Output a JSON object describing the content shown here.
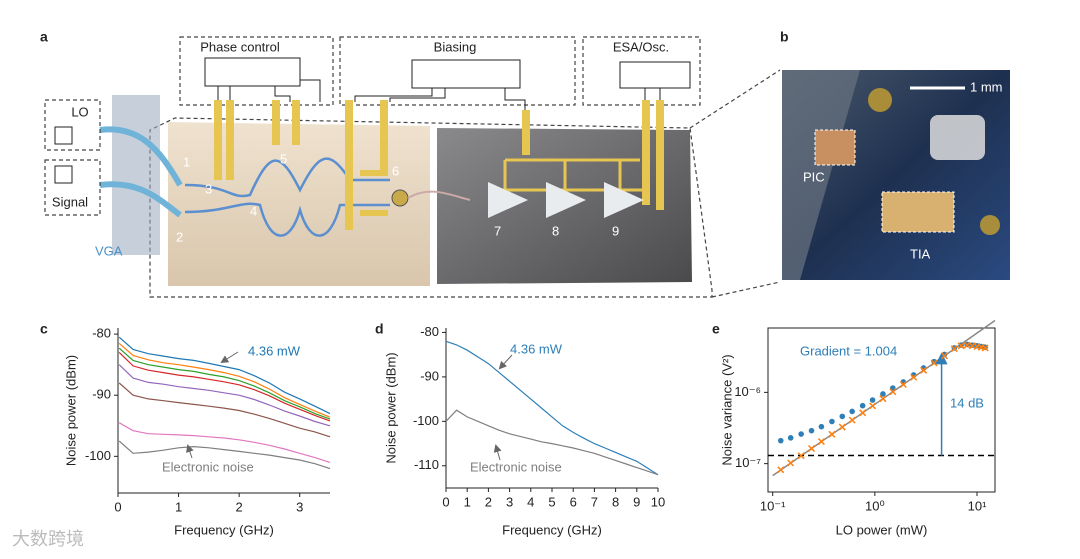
{
  "panel_a": {
    "label": "a",
    "phase": "Phase control",
    "biasing": "Biasing",
    "esa": "ESA/Osc.",
    "lo": "LO",
    "signal": "Signal",
    "vga": "VGA",
    "ports": [
      "1",
      "2",
      "3",
      "4",
      "5",
      "6",
      "7",
      "8",
      "9"
    ]
  },
  "panel_b": {
    "label": "b",
    "scale": "1 mm",
    "pic": "PIC",
    "tia": "TIA"
  },
  "watermark": "大数跨境",
  "chart_data": [
    {
      "type": "line",
      "panel_label": "c",
      "xlabel": "Frequency (GHz)",
      "ylabel": "Noise power (dBm)",
      "xlim": [
        0,
        3.5
      ],
      "ylim": [
        -106,
        -79
      ],
      "xticks": [
        0,
        1,
        2,
        3
      ],
      "yticks": [
        -100,
        -90,
        -80
      ],
      "x": [
        0.02,
        0.25,
        0.5,
        0.75,
        1,
        1.25,
        1.5,
        1.75,
        2,
        2.25,
        2.5,
        2.75,
        3,
        3.25,
        3.5
      ],
      "series": [
        {
          "color": "#1f77b4",
          "values": [
            -80.5,
            -82.5,
            -83.2,
            -83.6,
            -84,
            -84.3,
            -84.8,
            -85.3,
            -85.8,
            -86.8,
            -88,
            -89.5,
            -90.6,
            -91.8,
            -93
          ]
        },
        {
          "color": "#ff7f0e",
          "values": [
            -81.5,
            -83.5,
            -84.2,
            -84.7,
            -85,
            -85.4,
            -85.8,
            -86.3,
            -86.9,
            -87.8,
            -89,
            -90.4,
            -91.5,
            -92.6,
            -93.6
          ]
        },
        {
          "color": "#2ca02c",
          "values": [
            -82.3,
            -84.3,
            -85,
            -85.4,
            -85.8,
            -86.1,
            -86.6,
            -87,
            -87.6,
            -88.5,
            -89.6,
            -90.9,
            -91.9,
            -93,
            -93.9
          ]
        },
        {
          "color": "#d62728",
          "values": [
            -83,
            -85.2,
            -85.9,
            -86.3,
            -86.7,
            -87,
            -87.4,
            -87.8,
            -88.3,
            -89.1,
            -90.1,
            -91.3,
            -92.3,
            -93.3,
            -94.2
          ]
        },
        {
          "color": "#9467bd",
          "values": [
            -85,
            -87.2,
            -87.9,
            -88.2,
            -88.6,
            -88.9,
            -89.2,
            -89.6,
            -90,
            -90.7,
            -91.6,
            -92.6,
            -93.4,
            -94.3,
            -95
          ]
        },
        {
          "color": "#8c564b",
          "values": [
            -88,
            -90,
            -90.6,
            -90.9,
            -91.2,
            -91.5,
            -91.8,
            -92.1,
            -92.5,
            -93.1,
            -93.8,
            -94.6,
            -95.4,
            -96,
            -96.8
          ]
        },
        {
          "color": "#e377c2",
          "values": [
            -94.5,
            -95.8,
            -96.3,
            -96.4,
            -96.5,
            -96.6,
            -96.8,
            -97,
            -97.3,
            -97.7,
            -98.2,
            -98.8,
            -99.5,
            -100.2,
            -101
          ]
        },
        {
          "color": "#7f7f7f",
          "values": [
            -97.5,
            -99.5,
            -99.3,
            -99,
            -98.6,
            -98.4,
            -98.6,
            -98.9,
            -99.2,
            -99.5,
            -99.8,
            -100.2,
            -100.6,
            -101.2,
            -102
          ]
        }
      ],
      "annotations": [
        {
          "text": "4.36 mW",
          "color": "#1f77b4"
        },
        {
          "text": "Electronic noise",
          "color": "#7f7f7f"
        }
      ]
    },
    {
      "type": "line",
      "panel_label": "d",
      "xlabel": "Frequency (GHz)",
      "ylabel": "Noise power (dBm)",
      "xlim": [
        0,
        10
      ],
      "ylim": [
        -115,
        -79
      ],
      "xticks": [
        0,
        1,
        2,
        3,
        4,
        5,
        6,
        7,
        8,
        9,
        10
      ],
      "yticks": [
        -110,
        -100,
        -90,
        -80
      ],
      "x": [
        0,
        0.5,
        1,
        1.5,
        2,
        2.5,
        3,
        3.5,
        4,
        4.5,
        5,
        5.5,
        6,
        6.5,
        7,
        7.5,
        8,
        8.5,
        9,
        9.5,
        10
      ],
      "series": [
        {
          "color": "#2e7fb8",
          "values": [
            -82,
            -82.8,
            -84,
            -85.5,
            -87,
            -89,
            -91,
            -93,
            -95,
            -97,
            -99,
            -101,
            -102.5,
            -103.8,
            -105,
            -106,
            -107,
            -108,
            -109,
            -110.5,
            -112
          ]
        },
        {
          "color": "#7f7f7f",
          "values": [
            -100,
            -97.5,
            -99,
            -100,
            -101,
            -102,
            -102.8,
            -103.4,
            -104,
            -104.6,
            -105,
            -105.5,
            -106,
            -106.6,
            -107.2,
            -108,
            -108.8,
            -109.6,
            -110.4,
            -111.2,
            -112
          ]
        }
      ],
      "annotations": [
        {
          "text": "4.36 mW",
          "color": "#2e7fb8"
        },
        {
          "text": "Electronic noise",
          "color": "#7f7f7f"
        }
      ]
    },
    {
      "type": "scatter",
      "panel_label": "e",
      "xlabel": "LO power (mW)",
      "ylabel": "Noise variance (V²)",
      "xscale": "log",
      "yscale": "log",
      "xlim": [
        0.09,
        15
      ],
      "ylim": [
        4e-08,
        8e-06
      ],
      "xticks": [
        {
          "value": 0.1,
          "label": "10⁻¹"
        },
        {
          "value": 1,
          "label": "10⁰"
        },
        {
          "value": 10,
          "label": "10¹"
        }
      ],
      "yticks": [
        {
          "value": 1e-07,
          "label": "10⁻⁷"
        },
        {
          "value": 1e-06,
          "label": "10⁻⁶"
        }
      ],
      "x": [
        0.12,
        0.15,
        0.19,
        0.24,
        0.3,
        0.38,
        0.48,
        0.6,
        0.76,
        0.95,
        1.2,
        1.5,
        1.9,
        2.4,
        3.0,
        3.8,
        4.8,
        6.0,
        7.0,
        8.0,
        9.0,
        10,
        11,
        12
      ],
      "series": [
        {
          "color": "#2e7fb8",
          "marker": "circle",
          "values": [
            2.1e-07,
            2.3e-07,
            2.6e-07,
            2.9e-07,
            3.3e-07,
            3.9e-07,
            4.6e-07,
            5.4e-07,
            6.5e-07,
            7.8e-07,
            9.5e-07,
            1.15e-06,
            1.4e-06,
            1.76e-06,
            2.2e-06,
            2.7e-06,
            3.4e-06,
            4.2e-06,
            4.6e-06,
            4.7e-06,
            4.6e-06,
            4.5e-06,
            4.4e-06,
            4.3e-06
          ]
        },
        {
          "color": "#ff7f0e",
          "marker": "x",
          "values": [
            8.2e-08,
            1.02e-07,
            1.29e-07,
            1.63e-07,
            2.04e-07,
            2.58e-07,
            3.26e-07,
            4.08e-07,
            5.17e-07,
            6.46e-07,
            8.16e-07,
            1.02e-06,
            1.29e-06,
            1.63e-06,
            2.04e-06,
            2.58e-06,
            3.26e-06,
            4.1e-06,
            4.5e-06,
            4.6e-06,
            4.5e-06,
            4.4e-06,
            4.3e-06,
            4.2e-06
          ]
        }
      ],
      "fit": {
        "color": "#888888",
        "x": [
          0.1,
          15
        ],
        "values": [
          6.8e-08,
          1.02e-05
        ]
      },
      "hline": {
        "color": "#000000",
        "value": 1.3e-07
      },
      "arrow": {
        "color": "#2e7fb8",
        "x": 4.5,
        "values": [
          1.3e-07,
          3.3e-06
        ]
      },
      "annotations": [
        {
          "text": "Gradient = 1.004",
          "color": "#2e7fb8"
        },
        {
          "text": "14 dB",
          "color": "#2e7fb8"
        }
      ]
    }
  ]
}
